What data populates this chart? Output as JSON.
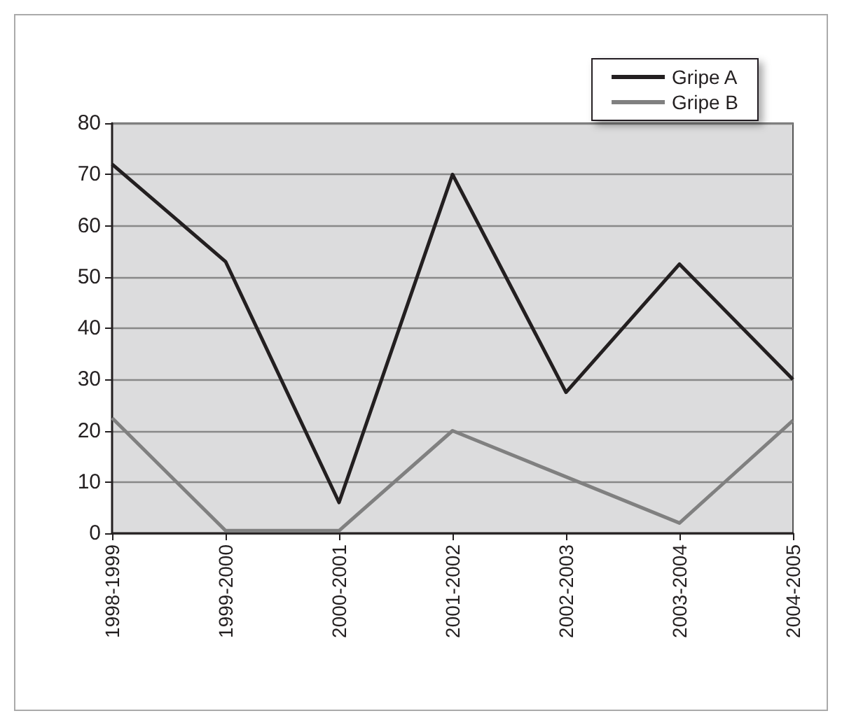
{
  "chart_data": {
    "type": "line",
    "categories": [
      "1998-1999",
      "1999-2000",
      "2000-2001",
      "2001-2002",
      "2002-2003",
      "2003-2004",
      "2004-2005"
    ],
    "series": [
      {
        "name": "Gripe A",
        "color": "#231f20",
        "values": [
          72,
          53,
          6,
          70,
          27.5,
          52.5,
          30
        ]
      },
      {
        "name": "Gripe B",
        "color": "#808080",
        "values": [
          22.5,
          0.5,
          0.5,
          20,
          11,
          2,
          22
        ]
      }
    ],
    "ylim": [
      0,
      80
    ],
    "yticks": [
      0,
      10,
      20,
      30,
      40,
      50,
      60,
      70,
      80
    ],
    "grid": "y",
    "legend": "top right",
    "marker": "none",
    "line_style": "solid"
  }
}
